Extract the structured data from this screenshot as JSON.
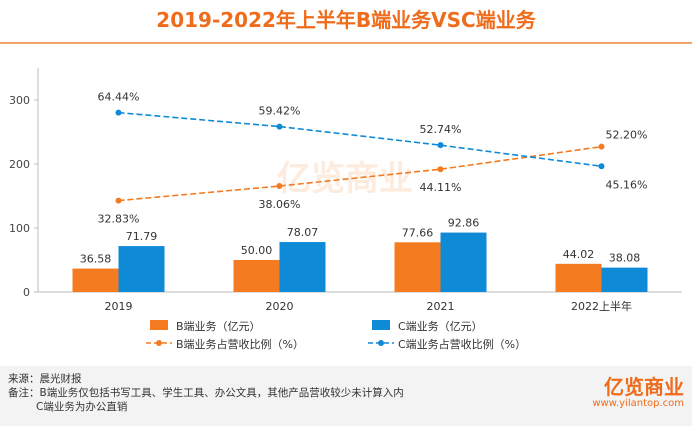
{
  "chart_data": {
    "type": "bar",
    "title": "2019-2022年上半年B端业务VSC端业务",
    "categories": [
      "2019",
      "2020",
      "2021",
      "2022上半年"
    ],
    "series": [
      {
        "name": "B端业务（亿元）",
        "kind": "bar",
        "color": "#f47b20",
        "values": [
          36.58,
          50.0,
          77.66,
          44.02
        ],
        "labels": [
          "36.58",
          "50.00",
          "77.66",
          "44.02"
        ]
      },
      {
        "name": "C端业务（亿元）",
        "kind": "bar",
        "color": "#0f8ad6",
        "values": [
          71.79,
          78.07,
          92.86,
          38.08
        ],
        "labels": [
          "71.79",
          "78.07",
          "92.86",
          "38.08"
        ]
      },
      {
        "name": "B端业务占营收比例（%）",
        "kind": "line",
        "color": "#f47b20",
        "values": [
          32.83,
          38.06,
          44.11,
          52.2
        ],
        "labels": [
          "32.83%",
          "38.06%",
          "44.11%",
          "52.20%"
        ]
      },
      {
        "name": "C端业务占营收比例（%）",
        "kind": "line",
        "color": "#0f8ad6",
        "values": [
          64.44,
          59.42,
          52.74,
          45.16
        ],
        "labels": [
          "64.44%",
          "59.42%",
          "52.74%",
          "45.16%"
        ]
      }
    ],
    "yticks": [
      "0",
      "100",
      "200",
      "300"
    ],
    "ylim": [
      0,
      330
    ],
    "grid": false,
    "legend_position": "bottom"
  },
  "watermark": "亿览商业",
  "footer": {
    "source": "来源：晨光财报",
    "note1": "备注：B端业务仅包括书写工具、学生工具、办公文具，其他产品营收较少未计算入内",
    "note2": "C端业务为办公直销"
  },
  "brand": {
    "logo": "亿览商业",
    "url": "www.yilantop.com"
  }
}
